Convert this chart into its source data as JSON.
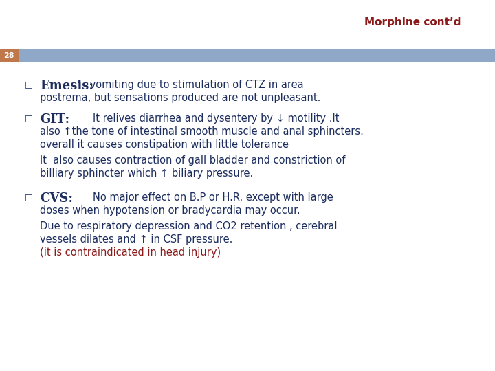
{
  "title": "Morphine cont’d",
  "title_color": "#8B1A1A",
  "slide_number": "28",
  "header_bar_color": "#8FA8C8",
  "background_color": "#FFFFFF",
  "bullet_color": "#1C2D5E",
  "text_color": "#1C2D5E",
  "red_color": "#8B1A1A",
  "emesis_heading": "Emesis:",
  "emesis_line1": " vomiting due to stimulation of CTZ in area",
  "emesis_line2": "postrema, but sensations produced are not unpleasant.",
  "git_heading": "GIT:",
  "git_line1": "        It relives diarrhea and dysentery by ↓ motility .It",
  "git_line2": "also ↑the tone of intestinal smooth muscle and anal sphincters.",
  "git_line3": "overall it causes constipation with little tolerance",
  "git_line4": "It  also causes contraction of gall bladder and constriction of",
  "git_line5": "billiary sphincter which ↑ biliary pressure.",
  "cvs_heading": "CVS:",
  "cvs_line1": "        No major effect on B.P or H.R. except with large",
  "cvs_line2": "doses when hypotension or bradycardia may occur.",
  "cvs_line3": "Due to respiratory depression and CO2 retention , cerebral",
  "cvs_line4": "vessels dilates and ↑ in CSF pressure.",
  "cvs_line5": "(it is contraindicated in head injury)"
}
